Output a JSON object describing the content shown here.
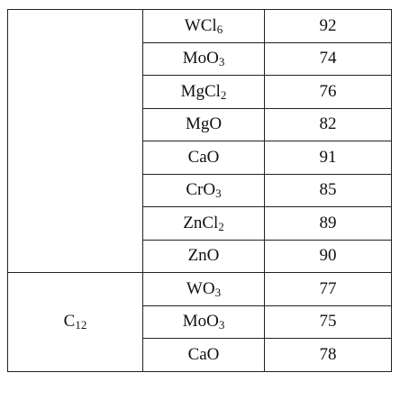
{
  "groups": [
    {
      "label": "",
      "label_sub": "",
      "rows": [
        {
          "compound": "WCl",
          "sub": "6",
          "value": "92"
        },
        {
          "compound": "MoO",
          "sub": "3",
          "value": "74"
        },
        {
          "compound": "MgCl",
          "sub": "2",
          "value": "76"
        },
        {
          "compound": "MgO",
          "sub": "",
          "value": "82"
        },
        {
          "compound": "CaO",
          "sub": "",
          "value": "91"
        },
        {
          "compound": "CrO",
          "sub": "3",
          "value": "85"
        },
        {
          "compound": "ZnCl",
          "sub": "2",
          "value": "89"
        },
        {
          "compound": "ZnO",
          "sub": "",
          "value": "90"
        }
      ]
    },
    {
      "label": "C",
      "label_sub": "12",
      "rows": [
        {
          "compound": "WO",
          "sub": "3",
          "value": "77"
        },
        {
          "compound": "MoO",
          "sub": "3",
          "value": "75"
        },
        {
          "compound": "CaO",
          "sub": "",
          "value": "78"
        }
      ]
    }
  ]
}
